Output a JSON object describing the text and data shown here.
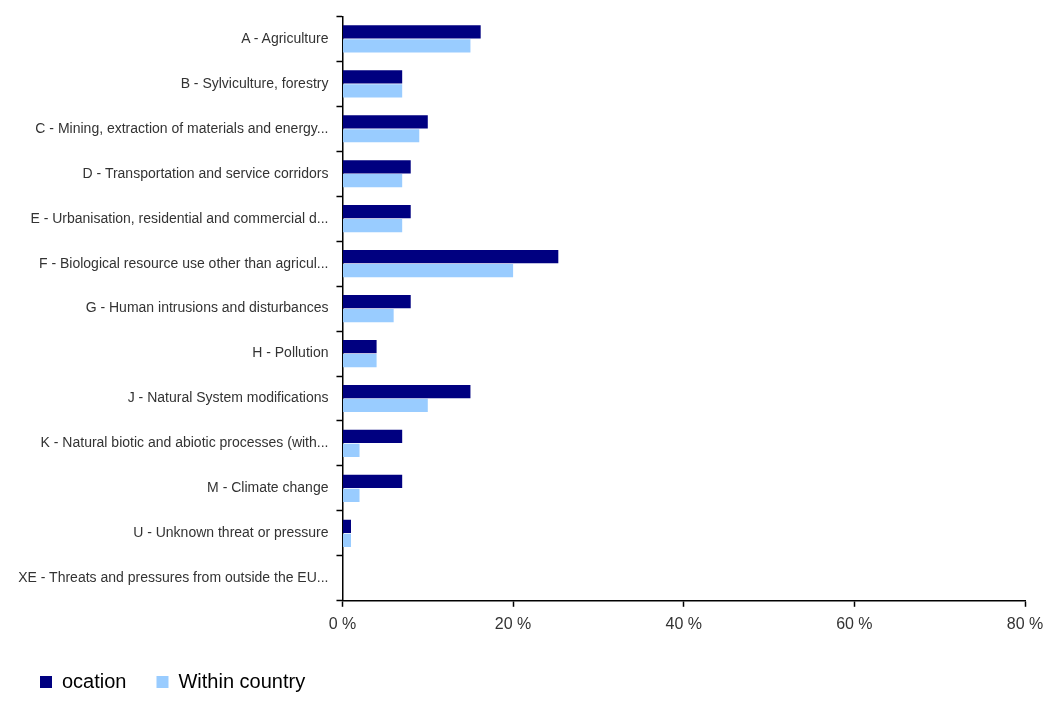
{
  "chart_data": {
    "type": "bar",
    "orientation": "horizontal",
    "categories": [
      "A - Agriculture",
      "B - Sylviculture, forestry",
      "C - Mining, extraction of materials and energy...",
      "D - Transportation and service corridors",
      "E - Urbanisation, residential and commercial d...",
      "F - Biological resource use other than agricul...",
      "G - Human intrusions and disturbances",
      "H - Pollution",
      "J - Natural System modifications",
      "K - Natural biotic and abiotic processes (with...",
      "M - Climate change",
      "U - Unknown threat or pressure",
      "XE - Threats and pressures from outside the EU..."
    ],
    "series": [
      {
        "name": "ocation",
        "color": "#000080",
        "values": [
          16.2,
          7,
          10,
          8,
          8,
          25.3,
          8,
          4,
          15,
          7,
          7,
          1,
          0
        ]
      },
      {
        "name": "Within country",
        "color": "#99ccff",
        "values": [
          15,
          7,
          9,
          7,
          7,
          20,
          6,
          4,
          10,
          2,
          2,
          1,
          0
        ]
      }
    ],
    "xlim": [
      0,
      80
    ],
    "xticks": [
      {
        "value": 0,
        "label": "0 %"
      },
      {
        "value": 20,
        "label": "20 %"
      },
      {
        "value": 40,
        "label": "40 %"
      },
      {
        "value": 60,
        "label": "60 %"
      },
      {
        "value": 80,
        "label": "80 %"
      }
    ],
    "grid": false,
    "legend": "bottom left"
  }
}
